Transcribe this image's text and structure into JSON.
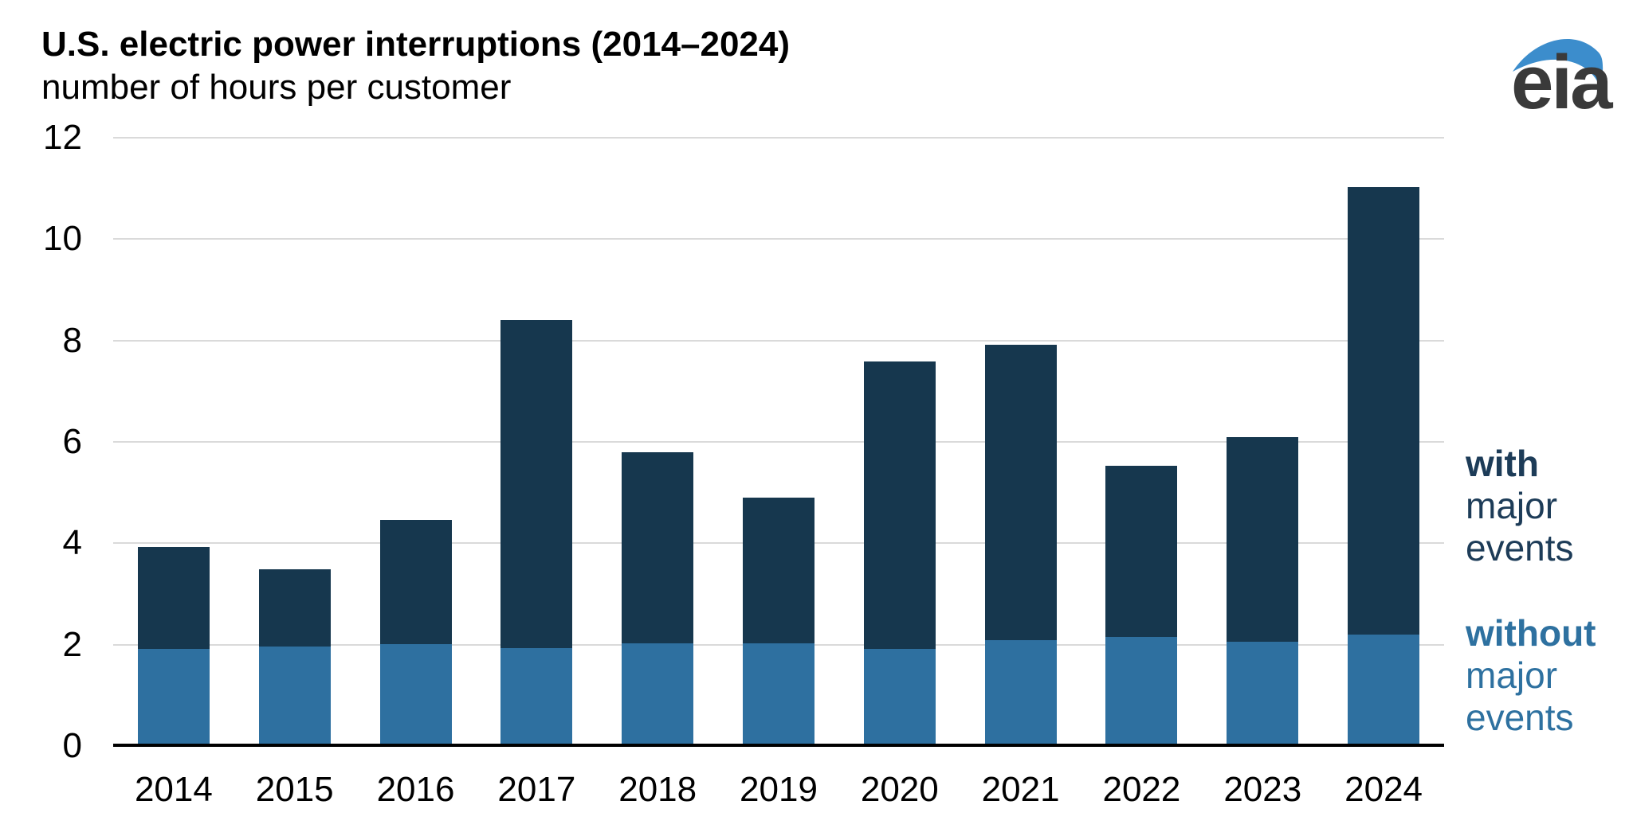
{
  "header": {
    "title": "U.S. electric power interruptions (2014–2024)",
    "subtitle": "number of hours per customer"
  },
  "logo": {
    "text": "eia",
    "text_color": "#3a3a3a",
    "swoosh_color": "#3c8dcc"
  },
  "legend": {
    "with_major": {
      "line1": "with",
      "line2": "major",
      "line3": "events",
      "color": "#1d3c58"
    },
    "without_major": {
      "line1": "without",
      "line2": "major",
      "line3": "events",
      "color": "#2e71a0"
    }
  },
  "chart_data": {
    "type": "bar",
    "stacked": true,
    "title": "U.S. electric power interruptions (2014–2024)",
    "ylabel": "number of hours per customer",
    "categories": [
      "2014",
      "2015",
      "2016",
      "2017",
      "2018",
      "2019",
      "2020",
      "2021",
      "2022",
      "2023",
      "2024"
    ],
    "series": [
      {
        "name": "without major events",
        "color": "#2e70a0",
        "values": [
          1.91,
          1.96,
          2.01,
          1.93,
          2.03,
          2.03,
          1.91,
          2.09,
          2.15,
          2.05,
          2.2
        ]
      },
      {
        "name": "with major events",
        "color": "#16374e",
        "values": [
          2.01,
          1.52,
          2.45,
          6.48,
          3.76,
          2.87,
          5.68,
          5.83,
          3.38,
          4.05,
          8.83
        ]
      }
    ],
    "totals": [
      3.92,
      3.48,
      4.46,
      8.41,
      5.79,
      4.9,
      7.59,
      7.92,
      5.53,
      6.1,
      11.03
    ],
    "ylim": [
      0,
      12
    ],
    "yticks": [
      0,
      2,
      4,
      6,
      8,
      10,
      12
    ],
    "grid": "horizontal",
    "gridline_color": "#dadada",
    "axis_color": "#000000",
    "legend_position": "right"
  }
}
